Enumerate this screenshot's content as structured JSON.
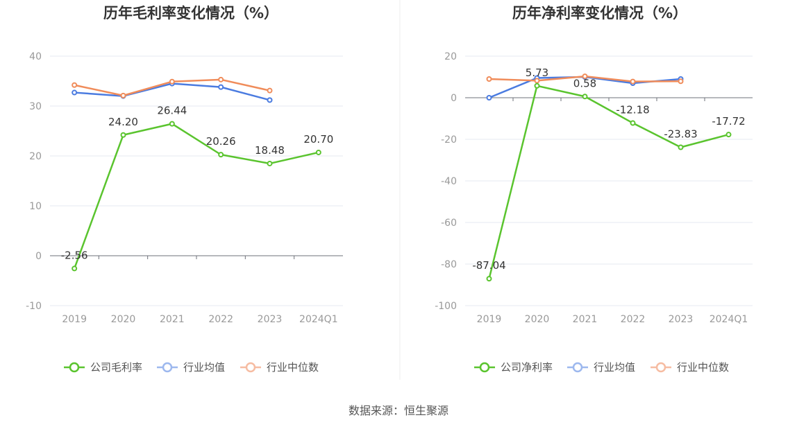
{
  "source_text": "数据来源：恒生聚源",
  "chart_data": [
    {
      "type": "line",
      "title": "历年毛利率变化情况（%）",
      "categories": [
        "2019",
        "2020",
        "2021",
        "2022",
        "2023",
        "2024Q1"
      ],
      "ylim": [
        -10,
        40
      ],
      "yticks": [
        "40",
        "30",
        "20",
        "10",
        "0",
        "-10"
      ],
      "grid": true,
      "legend_position": "bottom",
      "series": [
        {
          "name": "公司毛利率",
          "color": "#5ac42e",
          "values": [
            -2.56,
            24.2,
            26.44,
            20.26,
            18.48,
            20.7
          ],
          "labels": [
            "-2.56",
            "24.20",
            "26.44",
            "20.26",
            "18.48",
            "20.70"
          ]
        },
        {
          "name": "行业均值",
          "color": "#4a7be0",
          "values": [
            32.7,
            32.0,
            34.5,
            33.8,
            31.2,
            null
          ]
        },
        {
          "name": "行业中位数",
          "color": "#f08c5a",
          "values": [
            34.2,
            32.1,
            34.9,
            35.3,
            33.1,
            null
          ]
        }
      ]
    },
    {
      "type": "line",
      "title": "历年净利率变化情况（%）",
      "categories": [
        "2019",
        "2020",
        "2021",
        "2022",
        "2023",
        "2024Q1"
      ],
      "ylim": [
        -100,
        20
      ],
      "yticks": [
        "20",
        "0",
        "-20",
        "-40",
        "-60",
        "-80",
        "-100"
      ],
      "grid": true,
      "legend_position": "bottom",
      "series": [
        {
          "name": "公司净利率",
          "color": "#5ac42e",
          "values": [
            -87.04,
            5.73,
            0.58,
            -12.18,
            -23.83,
            -17.72
          ],
          "labels": [
            "-87.04",
            "5.73",
            "0.58",
            "-12.18",
            "-23.83",
            "-17.72"
          ]
        },
        {
          "name": "行业均值",
          "color": "#4a7be0",
          "values": [
            0.0,
            9.5,
            10.0,
            7.0,
            9.0,
            null
          ]
        },
        {
          "name": "行业中位数",
          "color": "#f08c5a",
          "values": [
            9.0,
            8.2,
            10.3,
            7.8,
            7.9,
            null
          ]
        }
      ]
    }
  ]
}
